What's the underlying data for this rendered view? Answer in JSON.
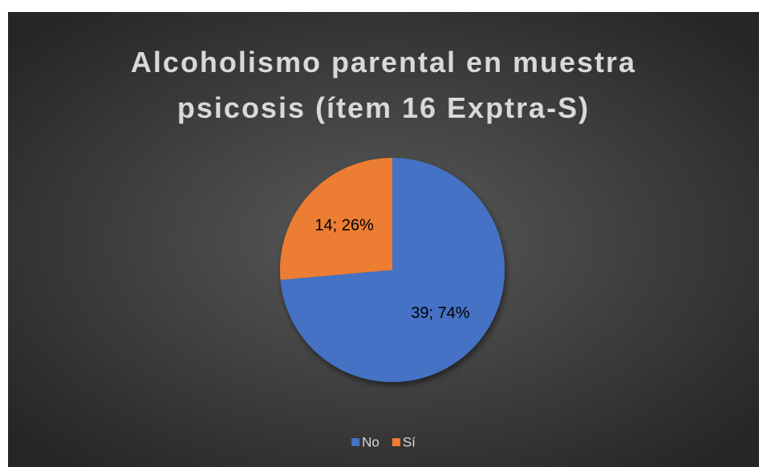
{
  "chart_data": {
    "type": "pie",
    "title": "Alcoholismo parental en muestra psicosis (ítem 16 Exptra-S)",
    "categories": [
      "No",
      "Sí"
    ],
    "values": [
      39,
      14
    ],
    "value_labels": [
      "39; 74%",
      "14; 26%"
    ],
    "colors": [
      "#4472c4",
      "#ed7d31"
    ],
    "legend": "bottom"
  }
}
